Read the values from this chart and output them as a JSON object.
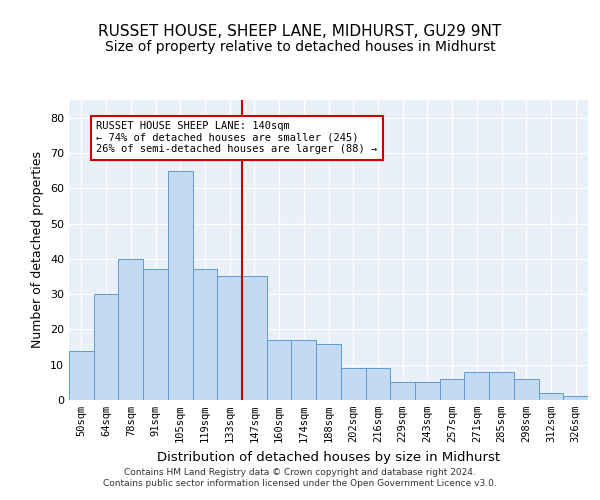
{
  "title": "RUSSET HOUSE, SHEEP LANE, MIDHURST, GU29 9NT",
  "subtitle": "Size of property relative to detached houses in Midhurst",
  "xlabel": "Distribution of detached houses by size in Midhurst",
  "ylabel": "Number of detached properties",
  "categories": [
    "50sqm",
    "64sqm",
    "78sqm",
    "91sqm",
    "105sqm",
    "119sqm",
    "133sqm",
    "147sqm",
    "160sqm",
    "174sqm",
    "188sqm",
    "202sqm",
    "216sqm",
    "229sqm",
    "243sqm",
    "257sqm",
    "271sqm",
    "285sqm",
    "298sqm",
    "312sqm",
    "326sqm"
  ],
  "bar_values": [
    14,
    30,
    40,
    37,
    65,
    37,
    35,
    35,
    17,
    17,
    16,
    9,
    9,
    5,
    5,
    6,
    8,
    8,
    6,
    2,
    1
  ],
  "bar_color": "#c5d9f1",
  "bar_edge_color": "#5b9bd5",
  "vline_pos": 7,
  "vline_color": "#cc0000",
  "annotation_line1": "RUSSET HOUSE SHEEP LANE: 140sqm",
  "annotation_line2": "← 74% of detached houses are smaller (245)",
  "annotation_line3": "26% of semi-detached houses are larger (88) →",
  "annotation_box_edge": "#cc0000",
  "annotation_box_face": "#ffffff",
  "ylim": [
    0,
    85
  ],
  "yticks": [
    0,
    10,
    20,
    30,
    40,
    50,
    60,
    70,
    80
  ],
  "footer": "Contains HM Land Registry data © Crown copyright and database right 2024.\nContains public sector information licensed under the Open Government Licence v3.0.",
  "title_fontsize": 11,
  "subtitle_fontsize": 10,
  "xlabel_fontsize": 9.5,
  "ylabel_fontsize": 9,
  "bg_color": "#eaf0f8",
  "fig_bg": "#ffffff"
}
